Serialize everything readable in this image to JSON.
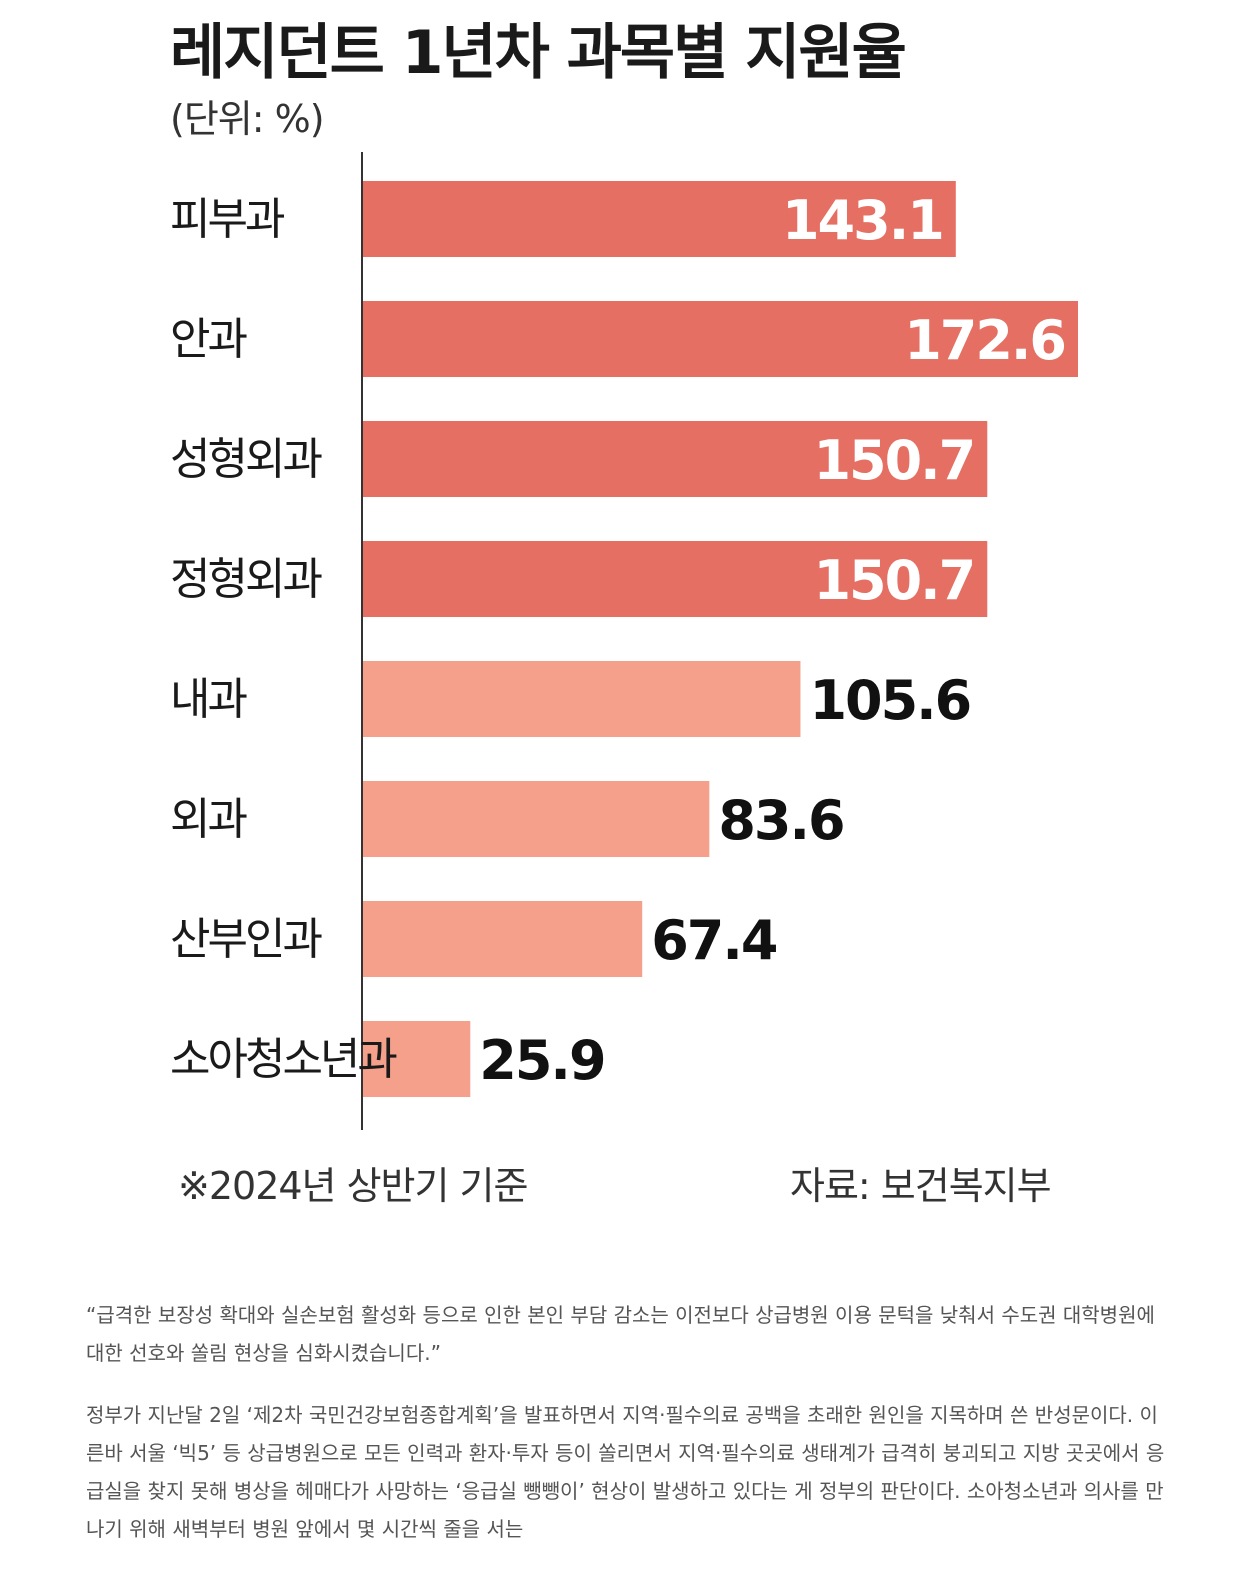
{
  "chart_data": {
    "type": "bar",
    "orientation": "horizontal",
    "title": "레지던트 1년차 과목별 지원율",
    "unit_label": "(단위: %)",
    "categories": [
      "피부과",
      "안과",
      "성형외과",
      "정형외과",
      "내과",
      "외과",
      "산부인과",
      "소아청소년과"
    ],
    "values": [
      143.1,
      172.6,
      150.7,
      150.7,
      105.6,
      83.6,
      67.4,
      25.9
    ],
    "value_labels": [
      "143.1",
      "172.6",
      "150.7",
      "150.7",
      "105.6",
      "83.6",
      "67.4",
      "25.9"
    ],
    "xlim": [
      0,
      172.6
    ],
    "grid": false,
    "legend": "none",
    "colors": {
      "high": "#e56f62",
      "low": "#f4a08b",
      "label_inside": "#ffffff",
      "label_outside": "#111111",
      "axis": "#333333"
    },
    "highlight_threshold": 110,
    "footnote": "※2024년 상반기 기준",
    "source": "자료: 보건복지부"
  },
  "article": {
    "paragraphs": [
      "“급격한 보장성 확대와 실손보험 활성화 등으로 인한 본인 부담 감소는 이전보다 상급병원 이용 문턱을 낮춰서 수도권 대학병원에 대한 선호와 쏠림 현상을 심화시켰습니다.”",
      "정부가 지난달 2일 ‘제2차 국민건강보험종합계획’을 발표하면서 지역·필수의료 공백을 초래한 원인을 지목하며 쓴 반성문이다. 이른바 서울 ‘빅5’ 등 상급병원으로 모든 인력과 환자·투자 등이 쏠리면서 지역·필수의료 생태계가 급격히 붕괴되고 지방 곳곳에서 응급실을 찾지 못해 병상을 헤매다가 사망하는 ‘응급실 뺑뺑이’ 현상이 발생하고 있다는 게 정부의 판단이다. 소아청소년과 의사를 만나기 위해 새벽부터 병원 앞에서 몇 시간씩 줄을 서는"
    ]
  }
}
